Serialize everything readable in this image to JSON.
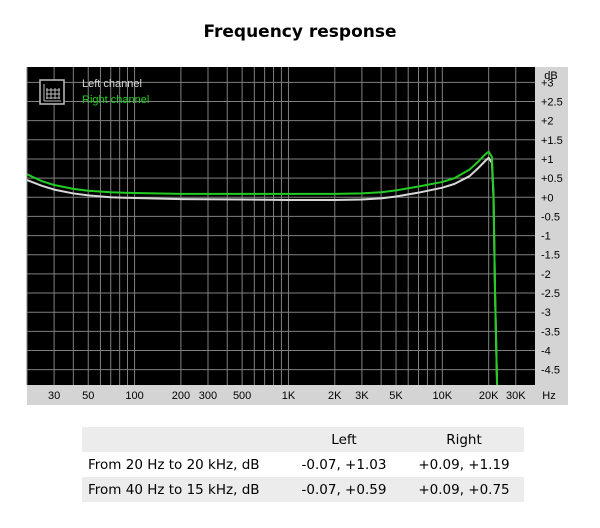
{
  "chart_data": {
    "type": "line",
    "title": "Frequency response",
    "x_scale": "log",
    "xlim": [
      20,
      40000
    ],
    "ylim": [
      -4.9,
      3.4
    ],
    "x_unit": "Hz",
    "y_unit": "dB",
    "grid": true,
    "legend_position": "top-left",
    "background": "#000000",
    "grid_color": "#808080",
    "x_ticks": [
      {
        "v": 30,
        "label": "30"
      },
      {
        "v": 50,
        "label": "50"
      },
      {
        "v": 100,
        "label": "100"
      },
      {
        "v": 200,
        "label": "200"
      },
      {
        "v": 300,
        "label": "300"
      },
      {
        "v": 500,
        "label": "500"
      },
      {
        "v": 1000,
        "label": "1K"
      },
      {
        "v": 2000,
        "label": "2K"
      },
      {
        "v": 3000,
        "label": "3K"
      },
      {
        "v": 5000,
        "label": "5K"
      },
      {
        "v": 10000,
        "label": "10K"
      },
      {
        "v": 20000,
        "label": "20K"
      },
      {
        "v": 30000,
        "label": "30K"
      }
    ],
    "x_grid": [
      20,
      30,
      40,
      50,
      60,
      70,
      80,
      90,
      100,
      200,
      300,
      400,
      500,
      600,
      700,
      800,
      900,
      1000,
      2000,
      3000,
      4000,
      5000,
      6000,
      7000,
      8000,
      9000,
      10000,
      20000,
      30000
    ],
    "y_ticks": [
      {
        "v": 3,
        "label": "+3"
      },
      {
        "v": 2.5,
        "label": "+2.5"
      },
      {
        "v": 2,
        "label": "+2"
      },
      {
        "v": 1.5,
        "label": "+1.5"
      },
      {
        "v": 1,
        "label": "+1"
      },
      {
        "v": 0.5,
        "label": "+0.5"
      },
      {
        "v": 0,
        "label": "+0"
      },
      {
        "v": -0.5,
        "label": "-0.5"
      },
      {
        "v": -1,
        "label": "-1"
      },
      {
        "v": -1.5,
        "label": "-1.5"
      },
      {
        "v": -2,
        "label": "-2"
      },
      {
        "v": -2.5,
        "label": "-2.5"
      },
      {
        "v": -3,
        "label": "-3"
      },
      {
        "v": -3.5,
        "label": "-3.5"
      },
      {
        "v": -4,
        "label": "-4"
      },
      {
        "v": -4.5,
        "label": "-4.5"
      }
    ],
    "series": [
      {
        "name": "Left channel",
        "color": "#d8d8d8",
        "x": [
          20,
          25,
          30,
          40,
          50,
          70,
          100,
          200,
          500,
          1000,
          2000,
          3000,
          4000,
          5000,
          7000,
          10000,
          12000,
          15000,
          17000,
          19000,
          20000,
          21000,
          21500,
          22000,
          23000
        ],
        "y": [
          0.45,
          0.3,
          0.2,
          0.1,
          0.05,
          0.0,
          -0.02,
          -0.05,
          -0.06,
          -0.07,
          -0.07,
          -0.06,
          -0.03,
          0.02,
          0.12,
          0.25,
          0.35,
          0.55,
          0.75,
          0.95,
          1.03,
          0.9,
          0.0,
          -2.5,
          -6.0
        ]
      },
      {
        "name": "Right channel",
        "color": "#22cc22",
        "x": [
          20,
          25,
          30,
          40,
          50,
          70,
          100,
          200,
          500,
          1000,
          2000,
          3000,
          4000,
          5000,
          7000,
          10000,
          12000,
          15000,
          17000,
          19000,
          20000,
          21000,
          21500,
          22000,
          23000
        ],
        "y": [
          0.6,
          0.42,
          0.32,
          0.22,
          0.17,
          0.13,
          0.11,
          0.09,
          0.09,
          0.09,
          0.09,
          0.1,
          0.13,
          0.18,
          0.28,
          0.4,
          0.5,
          0.72,
          0.92,
          1.12,
          1.19,
          1.05,
          0.1,
          -2.5,
          -6.0
        ]
      }
    ],
    "results_table": {
      "headers": [
        "",
        "Left",
        "Right"
      ],
      "rows": [
        [
          "From 20 Hz to 20 kHz, dB",
          "-0.07, +1.03",
          "+0.09, +1.19"
        ],
        [
          "From 40 Hz to 15 kHz, dB",
          "-0.07, +0.59",
          "+0.09, +0.75"
        ]
      ]
    }
  }
}
